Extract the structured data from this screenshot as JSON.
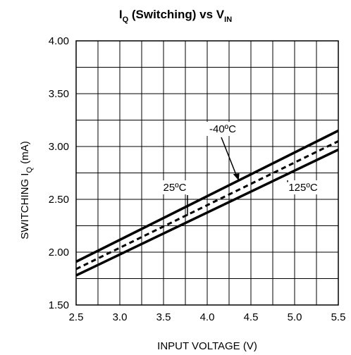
{
  "chart_data": {
    "type": "line",
    "title": {
      "main": "I",
      "main_sub": "Q",
      "middle": " (Switching) vs V",
      "end_sub": "IN"
    },
    "xlabel": "INPUT VOLTAGE (V)",
    "ylabel": {
      "main": "SWITCHING I",
      "sub": "Q",
      "unit": " (mA)"
    },
    "xlim": [
      2.5,
      5.5
    ],
    "ylim": [
      1.5,
      4.0
    ],
    "x_ticks": [
      "2.5",
      "3.0",
      "3.5",
      "4.0",
      "4.5",
      "5.0",
      "5.5"
    ],
    "y_ticks": [
      "1.50",
      "2.00",
      "2.50",
      "3.00",
      "3.50",
      "4.00"
    ],
    "grid": true,
    "series": [
      {
        "name": "-40ºC",
        "style": "solid",
        "x": [
          2.5,
          5.5
        ],
        "y": [
          1.91,
          3.15
        ]
      },
      {
        "name": "25ºC",
        "style": "dashed",
        "x": [
          2.5,
          5.5
        ],
        "y": [
          1.84,
          3.05
        ]
      },
      {
        "name": "125ºC",
        "style": "solid",
        "x": [
          2.5,
          5.5
        ],
        "y": [
          1.78,
          2.97
        ]
      }
    ],
    "annotations": [
      {
        "text": "-40ºC"
      },
      {
        "text": "25ºC"
      },
      {
        "text": "125ºC"
      }
    ]
  }
}
